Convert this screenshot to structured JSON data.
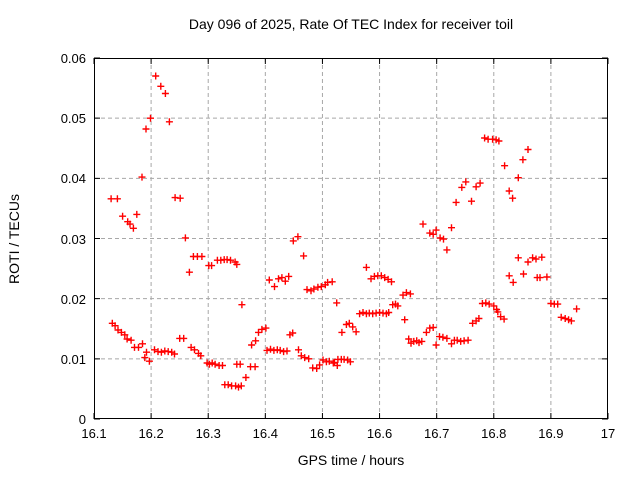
{
  "title": "Day 096 of 2025, Rate Of TEC Index for receiver toil",
  "chart_data": {
    "type": "scatter",
    "title": "Day 096 of 2025, Rate Of TEC Index for receiver toil",
    "xlabel": "GPS time / hours",
    "ylabel": "ROTI / TECUs",
    "xlim": [
      16.1,
      17
    ],
    "ylim": [
      0,
      0.06
    ],
    "x_ticks": [
      "16.1",
      "16.2",
      "16.3",
      "16.4",
      "16.5",
      "16.6",
      "16.7",
      "16.8",
      "16.9",
      "17"
    ],
    "y_ticks": [
      "0",
      "0.01",
      "0.02",
      "0.03",
      "0.04",
      "0.05",
      "0.06"
    ],
    "grid": true,
    "legend": "none",
    "marker": "plus",
    "marker_color": "#ff0000",
    "grid_color": "#a8a8a8",
    "frame_color": "#000000",
    "points": [
      [
        16.13,
        0.0366
      ],
      [
        16.132,
        0.0159
      ],
      [
        16.137,
        0.0155
      ],
      [
        16.141,
        0.0366
      ],
      [
        16.142,
        0.0148
      ],
      [
        16.148,
        0.0144
      ],
      [
        16.15,
        0.0337
      ],
      [
        16.154,
        0.014
      ],
      [
        16.158,
        0.0133
      ],
      [
        16.159,
        0.0328
      ],
      [
        16.163,
        0.0324
      ],
      [
        16.165,
        0.0131
      ],
      [
        16.169,
        0.0317
      ],
      [
        16.171,
        0.0119
      ],
      [
        16.175,
        0.034
      ],
      [
        16.178,
        0.0119
      ],
      [
        16.184,
        0.0402
      ],
      [
        16.185,
        0.0125
      ],
      [
        16.189,
        0.0102
      ],
      [
        16.191,
        0.0482
      ],
      [
        16.192,
        0.0111
      ],
      [
        16.197,
        0.0096
      ],
      [
        16.199,
        0.05
      ],
      [
        16.206,
        0.0115
      ],
      [
        16.208,
        0.057
      ],
      [
        16.212,
        0.0112
      ],
      [
        16.217,
        0.0553
      ],
      [
        16.218,
        0.0111
      ],
      [
        16.224,
        0.0113
      ],
      [
        16.225,
        0.0541
      ],
      [
        16.23,
        0.0112
      ],
      [
        16.232,
        0.0494
      ],
      [
        16.236,
        0.0111
      ],
      [
        16.241,
        0.0108
      ],
      [
        16.242,
        0.0368
      ],
      [
        16.25,
        0.0134
      ],
      [
        16.251,
        0.0367
      ],
      [
        16.257,
        0.0134
      ],
      [
        16.26,
        0.0301
      ],
      [
        16.267,
        0.0244
      ],
      [
        16.27,
        0.0119
      ],
      [
        16.274,
        0.027
      ],
      [
        16.276,
        0.0115
      ],
      [
        16.281,
        0.027
      ],
      [
        16.283,
        0.0109
      ],
      [
        16.287,
        0.0105
      ],
      [
        16.289,
        0.027
      ],
      [
        16.298,
        0.0093
      ],
      [
        16.301,
        0.0255
      ],
      [
        16.302,
        0.0091
      ],
      [
        16.306,
        0.0255
      ],
      [
        16.307,
        0.0093
      ],
      [
        16.312,
        0.0091
      ],
      [
        16.316,
        0.0264
      ],
      [
        16.319,
        0.0089
      ],
      [
        16.322,
        0.0264
      ],
      [
        16.325,
        0.0089
      ],
      [
        16.328,
        0.0265
      ],
      [
        16.329,
        0.0057
      ],
      [
        16.333,
        0.0265
      ],
      [
        16.335,
        0.0057
      ],
      [
        16.339,
        0.0264
      ],
      [
        16.341,
        0.0055
      ],
      [
        16.347,
        0.0261
      ],
      [
        16.348,
        0.0055
      ],
      [
        16.35,
        0.0257
      ],
      [
        16.35,
        0.0091
      ],
      [
        16.353,
        0.0053
      ],
      [
        16.356,
        0.0091
      ],
      [
        16.358,
        0.0055
      ],
      [
        16.359,
        0.019
      ],
      [
        16.366,
        0.0069
      ],
      [
        16.374,
        0.0087
      ],
      [
        16.376,
        0.0123
      ],
      [
        16.382,
        0.0087
      ],
      [
        16.383,
        0.013
      ],
      [
        16.388,
        0.0144
      ],
      [
        16.394,
        0.0149
      ],
      [
        16.401,
        0.0151
      ],
      [
        16.403,
        0.0114
      ],
      [
        16.407,
        0.0231
      ],
      [
        16.409,
        0.0116
      ],
      [
        16.415,
        0.0114
      ],
      [
        16.416,
        0.022
      ],
      [
        16.421,
        0.0115
      ],
      [
        16.423,
        0.0233
      ],
      [
        16.426,
        0.0114
      ],
      [
        16.429,
        0.0235
      ],
      [
        16.432,
        0.0112
      ],
      [
        16.435,
        0.0229
      ],
      [
        16.438,
        0.0113
      ],
      [
        16.441,
        0.0237
      ],
      [
        16.443,
        0.014
      ],
      [
        16.448,
        0.0143
      ],
      [
        16.449,
        0.0296
      ],
      [
        16.457,
        0.0303
      ],
      [
        16.458,
        0.0115
      ],
      [
        16.463,
        0.0105
      ],
      [
        16.467,
        0.0271
      ],
      [
        16.469,
        0.0102
      ],
      [
        16.473,
        0.0215
      ],
      [
        16.476,
        0.01
      ],
      [
        16.48,
        0.0213
      ],
      [
        16.483,
        0.0085
      ],
      [
        16.485,
        0.0216
      ],
      [
        16.49,
        0.0084
      ],
      [
        16.492,
        0.0219
      ],
      [
        16.495,
        0.009
      ],
      [
        16.498,
        0.022
      ],
      [
        16.501,
        0.0098
      ],
      [
        16.505,
        0.0223
      ],
      [
        16.507,
        0.0095
      ],
      [
        16.509,
        0.0227
      ],
      [
        16.512,
        0.0096
      ],
      [
        16.517,
        0.0228
      ],
      [
        16.519,
        0.0093
      ],
      [
        16.521,
        0.0094
      ],
      [
        16.525,
        0.0193
      ],
      [
        16.526,
        0.0089
      ],
      [
        16.527,
        0.0099
      ],
      [
        16.533,
        0.0099
      ],
      [
        16.534,
        0.0144
      ],
      [
        16.538,
        0.0099
      ],
      [
        16.542,
        0.0157
      ],
      [
        16.544,
        0.0098
      ],
      [
        16.547,
        0.0159
      ],
      [
        16.549,
        0.0095
      ],
      [
        16.553,
        0.0153
      ],
      [
        16.559,
        0.0145
      ],
      [
        16.565,
        0.0175
      ],
      [
        16.571,
        0.0177
      ],
      [
        16.577,
        0.0252
      ],
      [
        16.577,
        0.0175
      ],
      [
        16.582,
        0.0176
      ],
      [
        16.585,
        0.0233
      ],
      [
        16.588,
        0.0175
      ],
      [
        16.591,
        0.0237
      ],
      [
        16.594,
        0.0176
      ],
      [
        16.597,
        0.0238
      ],
      [
        16.6,
        0.0177
      ],
      [
        16.603,
        0.0238
      ],
      [
        16.606,
        0.0176
      ],
      [
        16.609,
        0.0235
      ],
      [
        16.612,
        0.0175
      ],
      [
        16.615,
        0.0232
      ],
      [
        16.616,
        0.0177
      ],
      [
        16.621,
        0.0228
      ],
      [
        16.623,
        0.019
      ],
      [
        16.628,
        0.0191
      ],
      [
        16.632,
        0.0188
      ],
      [
        16.641,
        0.0206
      ],
      [
        16.644,
        0.0165
      ],
      [
        16.647,
        0.021
      ],
      [
        16.651,
        0.0133
      ],
      [
        16.654,
        0.0208
      ],
      [
        16.655,
        0.0126
      ],
      [
        16.66,
        0.0129
      ],
      [
        16.665,
        0.013
      ],
      [
        16.669,
        0.0127
      ],
      [
        16.674,
        0.0129
      ],
      [
        16.676,
        0.0324
      ],
      [
        16.682,
        0.0144
      ],
      [
        16.688,
        0.0309
      ],
      [
        16.688,
        0.0151
      ],
      [
        16.694,
        0.0307
      ],
      [
        16.694,
        0.0152
      ],
      [
        16.699,
        0.0314
      ],
      [
        16.699,
        0.0123
      ],
      [
        16.705,
        0.0137
      ],
      [
        16.706,
        0.0301
      ],
      [
        16.711,
        0.0136
      ],
      [
        16.712,
        0.0299
      ],
      [
        16.718,
        0.0281
      ],
      [
        16.718,
        0.0134
      ],
      [
        16.726,
        0.0318
      ],
      [
        16.726,
        0.0125
      ],
      [
        16.731,
        0.0131
      ],
      [
        16.734,
        0.036
      ],
      [
        16.736,
        0.0131
      ],
      [
        16.742,
        0.0129
      ],
      [
        16.744,
        0.0385
      ],
      [
        16.748,
        0.013
      ],
      [
        16.751,
        0.0394
      ],
      [
        16.755,
        0.0131
      ],
      [
        16.761,
        0.0362
      ],
      [
        16.763,
        0.0159
      ],
      [
        16.769,
        0.0386
      ],
      [
        16.769,
        0.0163
      ],
      [
        16.774,
        0.0167
      ],
      [
        16.776,
        0.0392
      ],
      [
        16.78,
        0.0192
      ],
      [
        16.784,
        0.0467
      ],
      [
        16.786,
        0.0193
      ],
      [
        16.79,
        0.0465
      ],
      [
        16.792,
        0.0191
      ],
      [
        16.798,
        0.0465
      ],
      [
        16.8,
        0.0188
      ],
      [
        16.804,
        0.0464
      ],
      [
        16.805,
        0.0182
      ],
      [
        16.807,
        0.0178
      ],
      [
        16.809,
        0.0462
      ],
      [
        16.812,
        0.017
      ],
      [
        16.818,
        0.0166
      ],
      [
        16.819,
        0.0421
      ],
      [
        16.827,
        0.0379
      ],
      [
        16.827,
        0.0238
      ],
      [
        16.833,
        0.0367
      ],
      [
        16.834,
        0.0227
      ],
      [
        16.843,
        0.0401
      ],
      [
        16.843,
        0.0268
      ],
      [
        16.851,
        0.0431
      ],
      [
        16.852,
        0.0241
      ],
      [
        16.86,
        0.0448
      ],
      [
        16.86,
        0.0261
      ],
      [
        16.868,
        0.0268
      ],
      [
        16.874,
        0.0266
      ],
      [
        16.876,
        0.0235
      ],
      [
        16.881,
        0.0235
      ],
      [
        16.884,
        0.0269
      ],
      [
        16.893,
        0.0236
      ],
      [
        16.9,
        0.0192
      ],
      [
        16.906,
        0.0191
      ],
      [
        16.912,
        0.0191
      ],
      [
        16.918,
        0.0169
      ],
      [
        16.925,
        0.0167
      ],
      [
        16.931,
        0.0165
      ],
      [
        16.936,
        0.0163
      ],
      [
        16.945,
        0.0183
      ]
    ]
  }
}
